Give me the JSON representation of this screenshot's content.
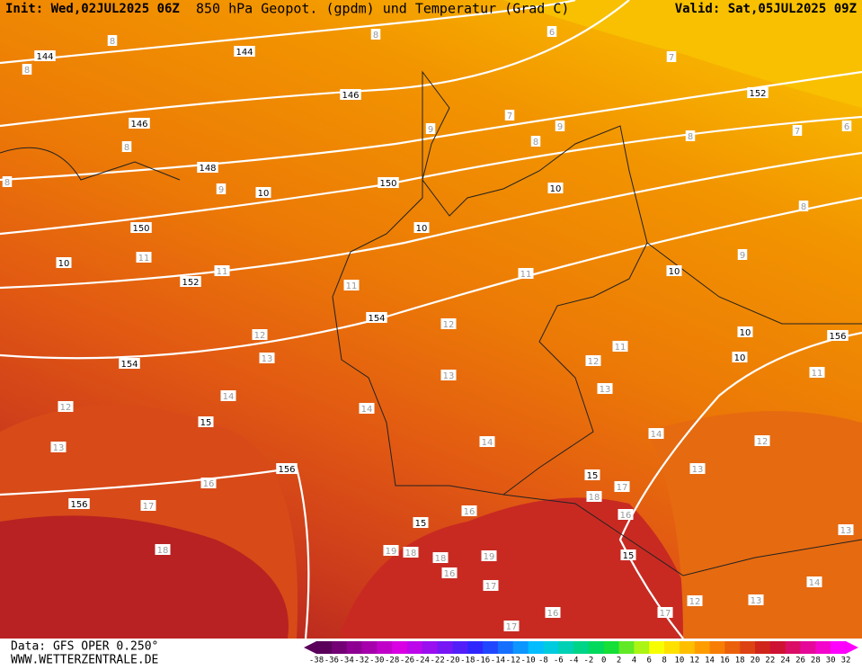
{
  "header": {
    "init": "Init: Wed,02JUL2025 06Z",
    "title": "850 hPa Geopot. (gpdm) und Temperatur (Grad C)",
    "valid": "Valid: Sat,05JUL2025 09Z"
  },
  "footer": {
    "source": "Data: GFS OPER 0.250°",
    "url": "WWW.WETTERZENTRALE.DE"
  },
  "map": {
    "geopotential_labels": [
      144,
      144,
      146,
      146,
      148,
      150,
      150,
      152,
      152,
      154,
      154,
      156,
      156,
      156
    ],
    "isotherm_labels_black": [
      10,
      10,
      10,
      10,
      10,
      10,
      10,
      15,
      15,
      15,
      15
    ],
    "isotherm_labels_gray": [
      8,
      8,
      8,
      6,
      7,
      7,
      8,
      9,
      9,
      8,
      9,
      8,
      7,
      6,
      8,
      9,
      8,
      11,
      11,
      11,
      11,
      12,
      12,
      13,
      11,
      12,
      13,
      13,
      14,
      14,
      12,
      11,
      13,
      14,
      14,
      12,
      13,
      16,
      17,
      18,
      17,
      16,
      16,
      18,
      19,
      18,
      18,
      19,
      16,
      17,
      13,
      14,
      12,
      13,
      17,
      16,
      17
    ]
  },
  "colorbar": {
    "labels": [
      -38,
      -36,
      -34,
      -32,
      -30,
      -28,
      -26,
      -24,
      -22,
      -20,
      -18,
      -16,
      -14,
      -12,
      -10,
      -8,
      -6,
      -4,
      -2,
      0,
      2,
      4,
      6,
      8,
      10,
      12,
      14,
      16,
      18,
      20,
      22,
      24,
      26,
      28,
      30,
      32
    ]
  }
}
